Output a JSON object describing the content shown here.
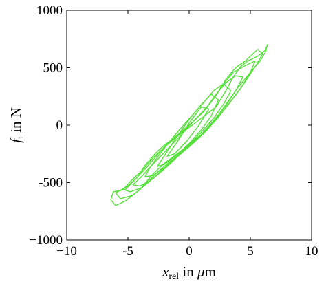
{
  "chart_data": {
    "type": "line",
    "title": "",
    "xlabel": {
      "base": "x",
      "sub": "rel",
      "rest": " in ",
      "unit_greek": "μ",
      "unit_rest": "m"
    },
    "ylabel": {
      "base": "f",
      "sub": "t",
      "rest": " in N"
    },
    "xlim": [
      -10,
      10
    ],
    "ylim": [
      -1000,
      1000
    ],
    "xticks": [
      -10,
      -5,
      0,
      5,
      10
    ],
    "xtick_labels": [
      "−10",
      "-5",
      "0",
      "5",
      "10"
    ],
    "yticks": [
      -1000,
      -500,
      0,
      500,
      1000
    ],
    "ytick_labels": [
      "−1000",
      "-500",
      "0",
      "500",
      "1000"
    ],
    "grid": false,
    "legend": "none",
    "series": [
      {
        "color": "#55e03a",
        "x": [
          -6.2,
          -6.4,
          -6.0,
          -5.2,
          -4.0,
          -3.0,
          -2.0,
          -1.0,
          0.0,
          1.0,
          2.0,
          3.0,
          4.0,
          5.0,
          5.8,
          6.2,
          6.4,
          6.2,
          5.6,
          4.8,
          4.2,
          3.6,
          3.0,
          2.2,
          1.0,
          0.0,
          -1.0,
          -2.0,
          -2.8,
          -3.6,
          -4.2,
          -5.2,
          -6.2
        ],
        "y": [
          -580,
          -650,
          -700,
          -660,
          -560,
          -430,
          -330,
          -250,
          -170,
          -80,
          30,
          180,
          330,
          460,
          560,
          630,
          700,
          650,
          600,
          560,
          510,
          420,
          300,
          160,
          60,
          -20,
          -100,
          -170,
          -250,
          -350,
          -450,
          -560,
          -580
        ]
      },
      {
        "color": "#55e03a",
        "x": [
          -6.0,
          -5.6,
          -4.6,
          -3.6,
          -2.6,
          -1.6,
          -0.6,
          0.4,
          1.4,
          2.4,
          3.4,
          4.4,
          5.4,
          6.0,
          5.6,
          4.6,
          3.8,
          3.0,
          2.2,
          1.2,
          0.2,
          -0.8,
          -1.8,
          -2.6,
          -3.4,
          -4.2,
          -5.0,
          -6.0
        ],
        "y": [
          -590,
          -640,
          -610,
          -520,
          -410,
          -320,
          -240,
          -150,
          -50,
          70,
          210,
          350,
          510,
          620,
          660,
          560,
          500,
          400,
          260,
          120,
          20,
          -70,
          -160,
          -260,
          -360,
          -450,
          -530,
          -590
        ]
      },
      {
        "color": "#55e03a",
        "x": [
          -5.4,
          -4.8,
          -3.8,
          -2.8,
          -1.8,
          -0.8,
          0.2,
          1.2,
          2.2,
          3.2,
          4.2,
          5.0,
          5.4,
          4.6,
          3.6,
          2.8,
          2.0,
          1.0,
          0.0,
          -1.0,
          -2.0,
          -3.0,
          -3.8,
          -4.6,
          -5.4
        ],
        "y": [
          -560,
          -580,
          -540,
          -450,
          -350,
          -260,
          -170,
          -70,
          50,
          180,
          320,
          460,
          560,
          520,
          460,
          360,
          230,
          100,
          0,
          -100,
          -190,
          -290,
          -390,
          -470,
          -560
        ]
      },
      {
        "color": "#55e03a",
        "x": [
          -4.6,
          -4.0,
          -3.0,
          -2.0,
          -1.0,
          0.0,
          1.0,
          2.0,
          3.0,
          3.8,
          4.4,
          3.8,
          3.0,
          2.2,
          1.4,
          0.4,
          -0.6,
          -1.6,
          -2.6,
          -3.4,
          -4.0,
          -4.6
        ],
        "y": [
          -520,
          -530,
          -470,
          -380,
          -280,
          -180,
          -80,
          40,
          170,
          300,
          420,
          430,
          370,
          270,
          150,
          40,
          -80,
          -190,
          -300,
          -390,
          -460,
          -520
        ]
      },
      {
        "color": "#55e03a",
        "x": [
          -3.6,
          -3.0,
          -2.0,
          -1.0,
          0.0,
          1.0,
          2.0,
          2.8,
          3.4,
          2.8,
          2.0,
          1.2,
          0.2,
          -0.8,
          -1.8,
          -2.6,
          -3.2,
          -3.6
        ],
        "y": [
          -450,
          -440,
          -370,
          -270,
          -170,
          -60,
          60,
          180,
          300,
          360,
          300,
          200,
          80,
          -40,
          -170,
          -280,
          -370,
          -450
        ]
      },
      {
        "color": "#55e03a",
        "x": [
          -2.6,
          -2.0,
          -1.0,
          0.0,
          1.0,
          1.8,
          2.4,
          1.8,
          1.0,
          0.0,
          -1.0,
          -1.8,
          -2.3,
          -2.6
        ],
        "y": [
          -360,
          -340,
          -260,
          -160,
          -40,
          80,
          220,
          270,
          180,
          50,
          -100,
          -230,
          -310,
          -360
        ]
      },
      {
        "color": "#55e03a",
        "x": [
          -1.8,
          -1.2,
          -0.2,
          0.8,
          1.6,
          1.0,
          0.0,
          -1.0,
          -1.8
        ],
        "y": [
          -270,
          -250,
          -140,
          0,
          140,
          160,
          20,
          -150,
          -270
        ]
      }
    ]
  }
}
